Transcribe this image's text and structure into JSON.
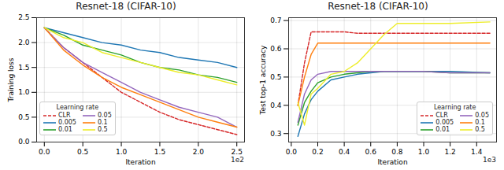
{
  "chart_data": [
    {
      "type": "line",
      "title": "Resnet-18 (CIFAR-10)",
      "x_label": "Iteration",
      "x_scale_note": "1e2",
      "y_label": "Training loss",
      "xlim": [
        -0.1,
        2.6
      ],
      "xticks": [
        {
          "value": 0,
          "label": "0.0"
        },
        {
          "value": 0.5,
          "label": "0.5"
        },
        {
          "value": 1,
          "label": "1.0"
        },
        {
          "value": 1.5,
          "label": "1.5"
        },
        {
          "value": 2,
          "label": "2.0"
        },
        {
          "value": 2.5,
          "label": "2.5"
        }
      ],
      "ylim": [
        0,
        2.5
      ],
      "yticks": [
        {
          "value": 0,
          "label": "0.0"
        },
        {
          "value": 0.5,
          "label": "0.5"
        },
        {
          "value": 1,
          "label": "1.0"
        },
        {
          "value": 1.5,
          "label": "1.5"
        },
        {
          "value": 2,
          "label": "2.0"
        },
        {
          "value": 2.5,
          "label": "2.5"
        }
      ],
      "grid": true,
      "legend": "lower left",
      "legend_title": "Learning rate",
      "x": [
        0,
        0.25,
        0.5,
        0.75,
        1,
        1.25,
        1.5,
        1.75,
        2,
        2.25,
        2.5
      ],
      "series": [
        {
          "name": "CLR",
          "color": "#d62728",
          "line_style": "dashed",
          "values": [
            2.3,
            1.9,
            1.6,
            1.3,
            1.0,
            0.8,
            0.6,
            0.45,
            0.35,
            0.25,
            0.15
          ]
        },
        {
          "name": "0.005",
          "color": "#1f77b4",
          "line_style": "solid",
          "values": [
            2.3,
            2.2,
            2.1,
            2.0,
            1.95,
            1.85,
            1.8,
            1.7,
            1.65,
            1.6,
            1.5
          ]
        },
        {
          "name": "0.01",
          "color": "#2ca02c",
          "line_style": "solid",
          "values": [
            2.3,
            2.15,
            1.95,
            1.85,
            1.75,
            1.6,
            1.5,
            1.45,
            1.35,
            1.3,
            1.2
          ]
        },
        {
          "name": "0.05",
          "color": "#9467bd",
          "line_style": "solid",
          "values": [
            2.3,
            1.9,
            1.6,
            1.4,
            1.2,
            1.0,
            0.85,
            0.7,
            0.6,
            0.5,
            0.3
          ]
        },
        {
          "name": "0.1",
          "color": "#ff7f0e",
          "line_style": "solid",
          "values": [
            2.3,
            1.85,
            1.55,
            1.3,
            1.1,
            0.95,
            0.8,
            0.65,
            0.5,
            0.4,
            0.3
          ]
        },
        {
          "name": "0.5",
          "color": "#eded2a",
          "line_style": "solid",
          "values": [
            2.3,
            2.1,
            2.0,
            1.8,
            1.7,
            1.6,
            1.5,
            1.4,
            1.35,
            1.25,
            1.15
          ]
        }
      ]
    },
    {
      "type": "line",
      "title": "Resnet-18 (CIFAR-10)",
      "x_label": "Iteration",
      "x_scale_note": "1e3",
      "y_label": "Test top-1 accuracy",
      "xlim": [
        -0.02,
        1.55
      ],
      "xticks": [
        {
          "value": 0,
          "label": "0.0"
        },
        {
          "value": 0.2,
          "label": "0.2"
        },
        {
          "value": 0.4,
          "label": "0.4"
        },
        {
          "value": 0.6,
          "label": "0.6"
        },
        {
          "value": 0.8,
          "label": "0.8"
        },
        {
          "value": 1,
          "label": "1.0"
        },
        {
          "value": 1.2,
          "label": "1.2"
        },
        {
          "value": 1.4,
          "label": "1.4"
        }
      ],
      "ylim": [
        0.27,
        0.71
      ],
      "yticks": [
        0.3,
        0.4,
        0.5,
        0.6,
        0.7
      ],
      "grid": true,
      "legend": "lower right",
      "legend_title": "Learning rate",
      "x": [
        0.05,
        0.1,
        0.15,
        0.2,
        0.3,
        0.4,
        0.5,
        0.6,
        0.7,
        0.8,
        1.0,
        1.2,
        1.5
      ],
      "series": [
        {
          "name": "CLR",
          "color": "#d62728",
          "line_style": "dashed",
          "values": [
            0.4,
            0.55,
            0.66,
            0.66,
            0.66,
            0.66,
            0.655,
            0.655,
            0.655,
            0.655,
            0.655,
            0.655,
            0.655
          ]
        },
        {
          "name": "0.005",
          "color": "#1f77b4",
          "line_style": "solid",
          "values": [
            0.29,
            0.37,
            0.42,
            0.45,
            0.49,
            0.5,
            0.51,
            0.515,
            0.52,
            0.52,
            0.52,
            0.52,
            0.515
          ]
        },
        {
          "name": "0.01",
          "color": "#2ca02c",
          "line_style": "solid",
          "values": [
            0.33,
            0.41,
            0.45,
            0.48,
            0.5,
            0.51,
            0.515,
            0.52,
            0.52,
            0.52,
            0.52,
            0.515,
            0.515
          ]
        },
        {
          "name": "0.05",
          "color": "#9467bd",
          "line_style": "solid",
          "values": [
            0.34,
            0.44,
            0.49,
            0.51,
            0.52,
            0.52,
            0.52,
            0.52,
            0.52,
            0.52,
            0.52,
            0.515,
            0.515
          ]
        },
        {
          "name": "0.1",
          "color": "#ff7f0e",
          "line_style": "solid",
          "values": [
            0.4,
            0.5,
            0.58,
            0.62,
            0.62,
            0.62,
            0.62,
            0.62,
            0.62,
            0.62,
            0.62,
            0.62,
            0.62
          ]
        },
        {
          "name": "0.5",
          "color": "#eded2a",
          "line_style": "solid",
          "values": [
            0.41,
            0.33,
            0.44,
            0.46,
            0.51,
            0.52,
            0.55,
            0.6,
            0.65,
            0.69,
            0.69,
            0.69,
            0.695
          ]
        }
      ]
    }
  ]
}
